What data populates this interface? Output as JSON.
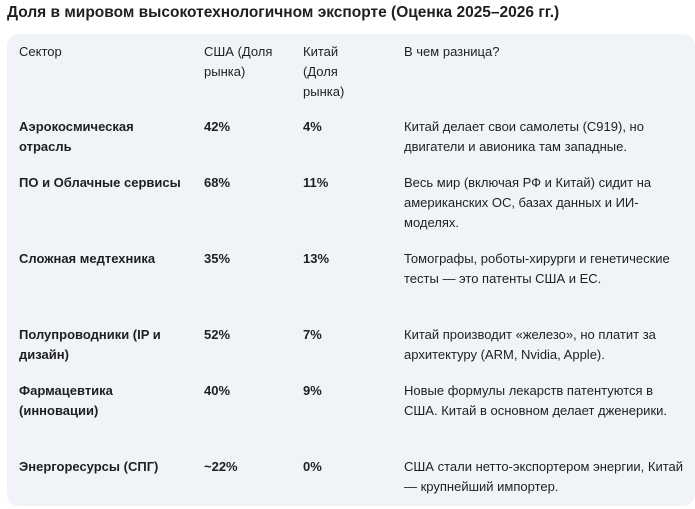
{
  "title": "Доля в мировом высокотехнологичном экспорте (Оценка 2025–2026 гг.)",
  "table": {
    "headers": {
      "sector": "Сектор",
      "us": "США (Доля рынка)",
      "china": "Китай (Доля рынка)",
      "difference": "В чем разница?"
    },
    "rows": [
      {
        "sector": "Аэрокосмическая отрасль",
        "us": "42%",
        "china": "4%",
        "difference": "Китай делает свои самолеты (C919), но двигатели и авионика там западные."
      },
      {
        "sector": "ПО и Облачные сервисы",
        "us": "68%",
        "china": "11%",
        "difference": "Весь мир (включая РФ и Китай) сидит на американских ОС, базах данных и ИИ-моделях."
      },
      {
        "sector": "Сложная медтехника",
        "us": "35%",
        "china": "13%",
        "difference": "Томографы, роботы-хирурги и генетические тесты — это патенты США и ЕС."
      },
      {
        "sector": "Полупроводники (IP и дизайн)",
        "us": "52%",
        "china": "7%",
        "difference": "Китай производит «железо», но платит за архитектуру (ARM, Nvidia, Apple)."
      },
      {
        "sector": "Фармацевтика (инновации)",
        "us": "40%",
        "china": "9%",
        "difference": "Новые формулы лекарств патентуются в США. Китай в основном делает дженерики."
      },
      {
        "sector": "Энергоресурсы (СПГ)",
        "us": "~22%",
        "china": "0%",
        "difference": "США стали нетто-экспортером энергии, Китай — крупнейший импортер."
      }
    ]
  }
}
